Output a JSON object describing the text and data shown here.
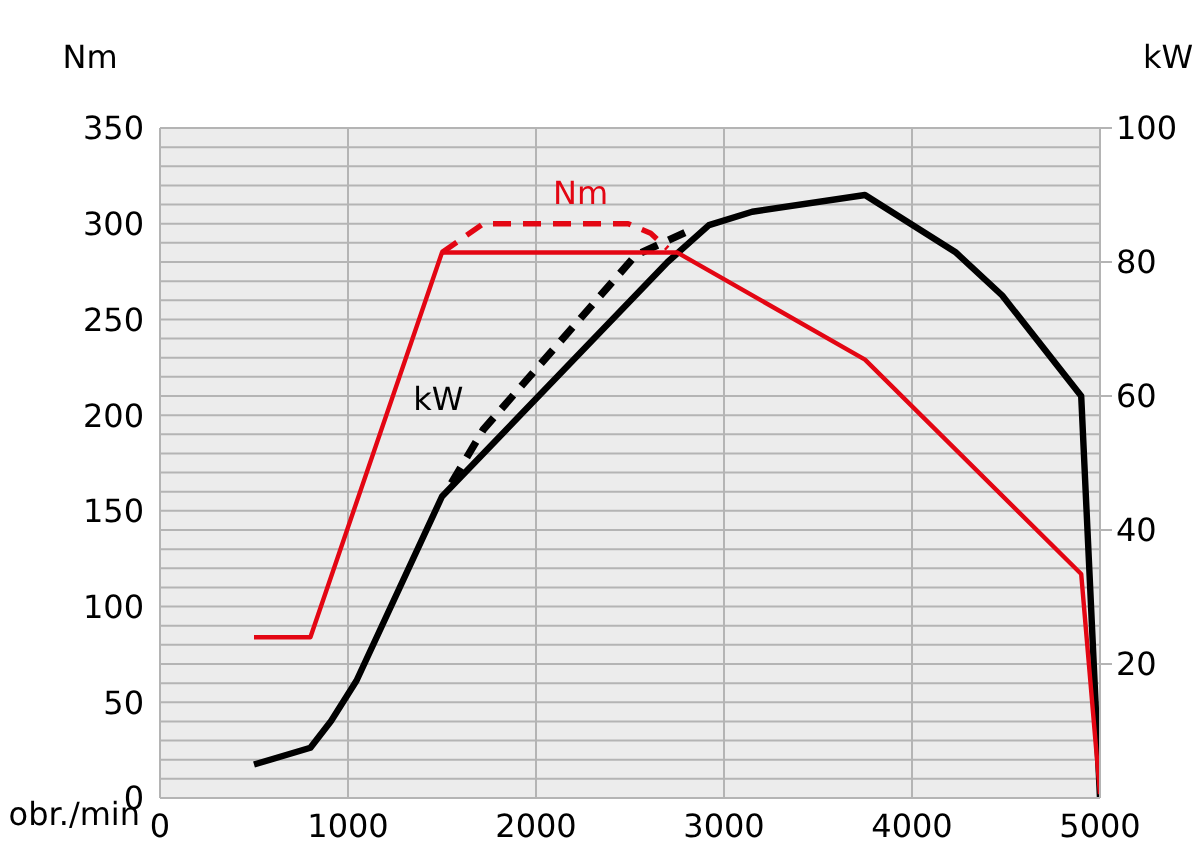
{
  "chart_data": {
    "type": "line",
    "xlabel": "obr./min",
    "ylabel": "Nm",
    "y2label": "kW",
    "xlim": [
      0,
      5000
    ],
    "xticks": [
      0,
      1000,
      2000,
      3000,
      4000,
      5000
    ],
    "ylim": [
      0,
      350
    ],
    "yticks": [
      0,
      {
        "value": 10,
        "label": null
      },
      {
        "value": 20,
        "label": null
      },
      {
        "value": 30,
        "label": null
      },
      {
        "value": 40,
        "label": null
      },
      50,
      {
        "value": 60,
        "label": null
      },
      {
        "value": 70,
        "label": null
      },
      {
        "value": 80,
        "label": null
      },
      {
        "value": 90,
        "label": null
      },
      100,
      {
        "value": 110,
        "label": null
      },
      {
        "value": 120,
        "label": null
      },
      {
        "value": 130,
        "label": null
      },
      {
        "value": 140,
        "label": null
      },
      150,
      {
        "value": 160,
        "label": null
      },
      {
        "value": 170,
        "label": null
      },
      {
        "value": 180,
        "label": null
      },
      {
        "value": 190,
        "label": null
      },
      200,
      {
        "value": 210,
        "label": null
      },
      {
        "value": 220,
        "label": null
      },
      {
        "value": 230,
        "label": null
      },
      {
        "value": 240,
        "label": null
      },
      250,
      {
        "value": 260,
        "label": null
      },
      {
        "value": 270,
        "label": null
      },
      {
        "value": 280,
        "label": null
      },
      {
        "value": 290,
        "label": null
      },
      300,
      {
        "value": 310,
        "label": null
      },
      {
        "value": 320,
        "label": null
      },
      {
        "value": 330,
        "label": null
      },
      {
        "value": 340,
        "label": null
      },
      350
    ],
    "y2lim": [
      0,
      100
    ],
    "y2ticks": [
      20,
      40,
      60,
      80,
      100
    ],
    "grid": true,
    "marker": "none",
    "series": [
      {
        "color": "#e30613",
        "line_style": "solid",
        "x": [
          500,
          800,
          1500,
          2750,
          3750,
          4900,
          5000
        ],
        "values": [
          84,
          84,
          285,
          285,
          229,
          117,
          2
        ]
      },
      {
        "name": "Nm",
        "color": "#e30613",
        "line_style": "dashed",
        "x": [
          1500,
          1720,
          2490,
          2610,
          2700
        ],
        "values": [
          285,
          300,
          300,
          295,
          287
        ]
      },
      {
        "color": "#000000",
        "line_style": "solid",
        "axis": "y2",
        "x": [
          500,
          800,
          910,
          1045,
          1500,
          2700,
          2920,
          3150,
          3750,
          4230,
          4480,
          4900,
          5000
        ],
        "values": [
          5,
          7.5,
          11.5,
          17.5,
          45,
          80,
          85.5,
          87.5,
          90,
          81.5,
          75,
          60,
          0
        ]
      },
      {
        "name": "kW",
        "color": "#000000",
        "line_style": "dashed",
        "axis": "y2",
        "x": [
          1550,
          1720,
          2530,
          2840
        ],
        "values": [
          47,
          55,
          81,
          85
        ]
      }
    ]
  }
}
